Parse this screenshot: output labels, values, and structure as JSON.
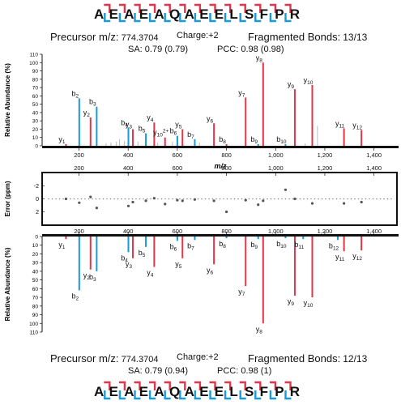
{
  "top": {
    "sequence": [
      "A",
      "E",
      "A",
      "E",
      "A",
      "Q",
      "A",
      "E",
      "E",
      "L",
      "S",
      "F",
      "P",
      "R"
    ],
    "precursor_label": "Precursor m/z:",
    "precursor_value": "774.3704",
    "charge": "Charge:+2",
    "fragmented_label": "Fragmented Bonds:",
    "fragmented_value": "13/13",
    "sa_label": "SA:",
    "sa_value": "0.79 (0.79)",
    "pcc_label": "PCC:",
    "pcc_value": "0.98 (0.98)"
  },
  "bottom": {
    "sequence": [
      "A",
      "E",
      "A",
      "E",
      "A",
      "Q",
      "A",
      "E",
      "E",
      "L",
      "S",
      "F",
      "P",
      "R"
    ],
    "precursor_label": "Precursor m/z:",
    "precursor_value": "774.3704",
    "charge": "Charge:+2",
    "fragmented_label": "Fragmented Bonds:",
    "fragmented_value": "12/13",
    "sa_label": "SA:",
    "sa_value": "0.79 (0.94)",
    "pcc_label": "PCC:",
    "pcc_value": "0.98 (1)"
  },
  "colors": {
    "b_ion": "#1a9ad6",
    "y_ion": "#e0354a",
    "unassigned": "#bbbbbb",
    "error_dot": "#555555"
  },
  "chart_data": [
    {
      "type": "bar",
      "panel": "top-spectrum",
      "xlabel": "m/z",
      "ylabel": "Relative Abundance (%)",
      "xlim": [
        50,
        1500
      ],
      "ylim": [
        0,
        110
      ],
      "x_ticks": [
        "200",
        "400",
        "600",
        "800",
        "1,000",
        "1,200",
        "1,400"
      ],
      "y_ticks": [
        "0",
        "10",
        "20",
        "30",
        "40",
        "50",
        "60",
        "70",
        "80",
        "90",
        "100",
        "110"
      ],
      "peaks": [
        {
          "mz": 147,
          "y": 2,
          "ion": "y",
          "label": "y1"
        },
        {
          "mz": 201,
          "y": 57,
          "ion": "b",
          "label": "b2"
        },
        {
          "mz": 247,
          "y": 34,
          "ion": "y",
          "label": "y2"
        },
        {
          "mz": 272,
          "y": 47,
          "ion": "b",
          "label": "b3"
        },
        {
          "mz": 401,
          "y": 22,
          "ion": "b",
          "label": "b4"
        },
        {
          "mz": 419,
          "y": 20,
          "ion": "y",
          "label": "y3"
        },
        {
          "mz": 472,
          "y": 15,
          "ion": "b",
          "label": "b5"
        },
        {
          "mz": 506,
          "y": 28,
          "ion": "y",
          "label": "y4"
        },
        {
          "mz": 550,
          "y": 10,
          "ion": "y",
          "label": "y10 2+"
        },
        {
          "mz": 600,
          "y": 12,
          "ion": "b",
          "label": "b6"
        },
        {
          "mz": 621,
          "y": 20,
          "ion": "y",
          "label": "y5"
        },
        {
          "mz": 671,
          "y": 8,
          "ion": "b",
          "label": "b7"
        },
        {
          "mz": 749,
          "y": 27,
          "ion": "y",
          "label": "y6"
        },
        {
          "mz": 800,
          "y": 2,
          "ion": "y",
          "label": "b8"
        },
        {
          "mz": 878,
          "y": 58,
          "ion": "y",
          "label": "y7"
        },
        {
          "mz": 929,
          "y": 2,
          "ion": "b",
          "label": "b9"
        },
        {
          "mz": 949,
          "y": 100,
          "ion": "y",
          "label": "y8"
        },
        {
          "mz": 1040,
          "y": 2,
          "ion": "b",
          "label": "b10"
        },
        {
          "mz": 1078,
          "y": 68,
          "ion": "y",
          "label": "y9"
        },
        {
          "mz": 1149,
          "y": 73,
          "ion": "y",
          "label": "y10"
        },
        {
          "mz": 1278,
          "y": 21,
          "ion": "y",
          "label": "y11"
        },
        {
          "mz": 1349,
          "y": 19,
          "ion": "y",
          "label": "y12"
        }
      ],
      "unassigned_peaks": [
        {
          "mz": 310,
          "y": 3
        },
        {
          "mz": 330,
          "y": 4
        },
        {
          "mz": 352,
          "y": 5
        },
        {
          "mz": 365,
          "y": 8
        },
        {
          "mz": 385,
          "y": 6
        },
        {
          "mz": 440,
          "y": 5
        },
        {
          "mz": 520,
          "y": 4
        },
        {
          "mz": 580,
          "y": 5
        },
        {
          "mz": 690,
          "y": 4
        },
        {
          "mz": 1120,
          "y": 3
        },
        {
          "mz": 1170,
          "y": 24
        }
      ]
    },
    {
      "type": "scatter",
      "panel": "error-plot",
      "ylabel": "Error (ppm)",
      "xlim": [
        50,
        1500
      ],
      "ylim": [
        -2.5,
        2.5
      ],
      "x_ticks": [
        "200",
        "400",
        "600",
        "800",
        "1,000",
        "1,200",
        "1,400"
      ],
      "y_ticks": [
        "-2",
        "0",
        "2"
      ],
      "points": [
        {
          "mz": 147,
          "y": 0
        },
        {
          "mz": 201,
          "y": -0.6
        },
        {
          "mz": 247,
          "y": 0.3
        },
        {
          "mz": 272,
          "y": -1.4
        },
        {
          "mz": 401,
          "y": -1.1
        },
        {
          "mz": 419,
          "y": -0.5
        },
        {
          "mz": 472,
          "y": -0.3
        },
        {
          "mz": 506,
          "y": 0.1
        },
        {
          "mz": 550,
          "y": -0.8
        },
        {
          "mz": 600,
          "y": -0.2
        },
        {
          "mz": 621,
          "y": -0.3
        },
        {
          "mz": 671,
          "y": -0.1
        },
        {
          "mz": 749,
          "y": -0.3
        },
        {
          "mz": 800,
          "y": -2.0
        },
        {
          "mz": 878,
          "y": -0.2
        },
        {
          "mz": 929,
          "y": -0.9
        },
        {
          "mz": 949,
          "y": -0.3
        },
        {
          "mz": 1040,
          "y": 1.4
        },
        {
          "mz": 1078,
          "y": 0
        },
        {
          "mz": 1149,
          "y": -0.7
        },
        {
          "mz": 1278,
          "y": -0.7
        },
        {
          "mz": 1349,
          "y": -0.5
        }
      ]
    },
    {
      "type": "bar",
      "panel": "bottom-spectrum",
      "ylabel": "Relative Abundance (%)",
      "xlim": [
        50,
        1500
      ],
      "ylim": [
        0,
        110
      ],
      "inverted": true,
      "x_ticks": [
        "200",
        "400",
        "600",
        "800",
        "1,000",
        "1,200",
        "1,400"
      ],
      "y_ticks": [
        "0",
        "10",
        "20",
        "30",
        "40",
        "50",
        "60",
        "70",
        "80",
        "90",
        "100",
        "110"
      ],
      "peaks": [
        {
          "mz": 147,
          "y": 3,
          "ion": "y",
          "label": "y1"
        },
        {
          "mz": 201,
          "y": 62,
          "ion": "b",
          "label": "b2"
        },
        {
          "mz": 247,
          "y": 38,
          "ion": "y",
          "label": "y2"
        },
        {
          "mz": 272,
          "y": 40,
          "ion": "b",
          "label": "b3"
        },
        {
          "mz": 401,
          "y": 18,
          "ion": "b",
          "label": "b4"
        },
        {
          "mz": 419,
          "y": 25,
          "ion": "y",
          "label": "y3"
        },
        {
          "mz": 472,
          "y": 12,
          "ion": "b",
          "label": "b5"
        },
        {
          "mz": 506,
          "y": 35,
          "ion": "y",
          "label": "y4"
        },
        {
          "mz": 600,
          "y": 5,
          "ion": "b",
          "label": "b6"
        },
        {
          "mz": 621,
          "y": 25,
          "ion": "y",
          "label": "y5"
        },
        {
          "mz": 671,
          "y": 4,
          "ion": "b",
          "label": "b7"
        },
        {
          "mz": 749,
          "y": 32,
          "ion": "y",
          "label": "y6"
        },
        {
          "mz": 800,
          "y": 2,
          "ion": "b",
          "label": "b8"
        },
        {
          "mz": 878,
          "y": 57,
          "ion": "y",
          "label": "y7"
        },
        {
          "mz": 929,
          "y": 3,
          "ion": "b",
          "label": "b9"
        },
        {
          "mz": 949,
          "y": 100,
          "ion": "y",
          "label": "y8"
        },
        {
          "mz": 1040,
          "y": 2,
          "ion": "b",
          "label": "b10"
        },
        {
          "mz": 1078,
          "y": 68,
          "ion": "y",
          "label": "y9"
        },
        {
          "mz": 1112,
          "y": 3,
          "ion": "b",
          "label": "b11"
        },
        {
          "mz": 1149,
          "y": 70,
          "ion": "y",
          "label": "y10"
        },
        {
          "mz": 1253,
          "y": 4,
          "ion": "b",
          "label": "b12"
        },
        {
          "mz": 1278,
          "y": 17,
          "ion": "y",
          "label": "y11"
        },
        {
          "mz": 1349,
          "y": 16,
          "ion": "y",
          "label": "y12"
        }
      ]
    }
  ]
}
